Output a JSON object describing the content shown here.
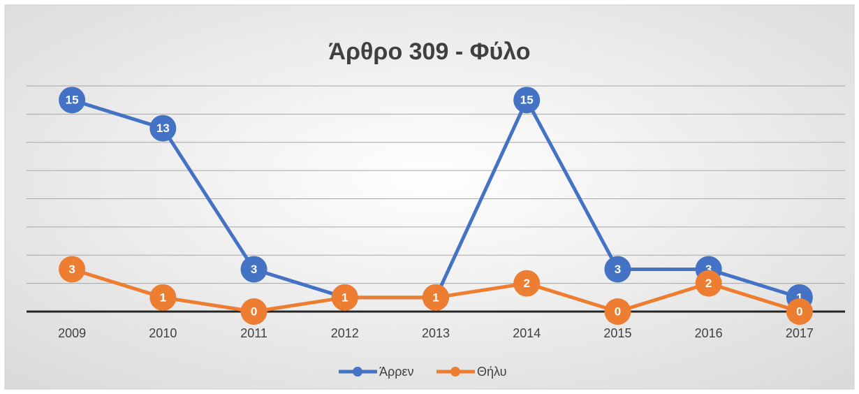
{
  "chart_data": {
    "type": "line",
    "title": "Άρθρο 309 - Φύλο",
    "categories": [
      "2009",
      "2010",
      "2011",
      "2012",
      "2013",
      "2014",
      "2015",
      "2016",
      "2017"
    ],
    "series": [
      {
        "name": "Άρρεν",
        "color": "#4472c4",
        "values": [
          15,
          13,
          3,
          1,
          1,
          15,
          3,
          3,
          1
        ]
      },
      {
        "name": "Θήλυ",
        "color": "#ed7d31",
        "values": [
          3,
          1,
          0,
          1,
          1,
          2,
          0,
          2,
          0
        ]
      }
    ],
    "ylim": [
      0,
      16
    ],
    "yticks": [
      0,
      2,
      4,
      6,
      8,
      10,
      12,
      14,
      16
    ],
    "grid": true,
    "legend": "bottom"
  }
}
